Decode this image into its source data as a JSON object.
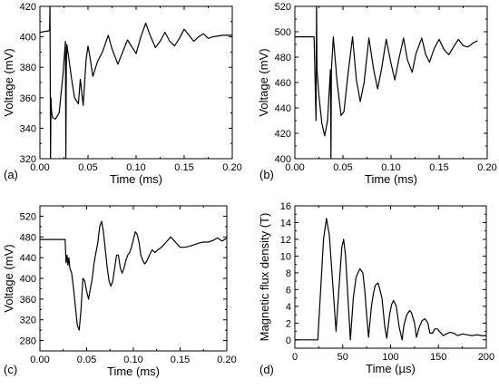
{
  "chart_data": [
    {
      "panel_label": "(a)",
      "type": "line",
      "xlabel": "Time (ms)",
      "ylabel": "Voltage (mV)",
      "xlim": [
        0,
        0.2
      ],
      "ylim": [
        320,
        420
      ],
      "xticks": [
        "0.00",
        "0.05",
        "0.10",
        "0.15",
        "0.20"
      ],
      "yticks": [
        "320",
        "340",
        "360",
        "380",
        "400",
        "420"
      ],
      "series": [
        {
          "color": "#000000",
          "x": [
            0,
            0.01,
            0.0105,
            0.011,
            0.0115,
            0.012,
            0.013,
            0.016,
            0.02,
            0.024,
            0.0265,
            0.027,
            0.0275,
            0.028,
            0.03,
            0.033,
            0.036,
            0.04,
            0.042,
            0.045,
            0.048,
            0.05,
            0.052,
            0.055,
            0.06,
            0.065,
            0.071,
            0.075,
            0.081,
            0.086,
            0.091,
            0.096,
            0.1,
            0.105,
            0.11,
            0.114,
            0.12,
            0.125,
            0.13,
            0.135,
            0.14,
            0.145,
            0.15,
            0.155,
            0.16,
            0.165,
            0.17,
            0.175,
            0.18,
            0.19,
            0.2
          ],
          "y": [
            403,
            404,
            420,
            320,
            360,
            352,
            347,
            346,
            350,
            375,
            397,
            320,
            380,
            395,
            386,
            372,
            360,
            356,
            372,
            355,
            385,
            394,
            387,
            374,
            384,
            390,
            401,
            392,
            382,
            390,
            398,
            393,
            389,
            400,
            409,
            402,
            393,
            397,
            403,
            397,
            394,
            399,
            405,
            401,
            397,
            400,
            402,
            399,
            400,
            401,
            401
          ]
        }
      ]
    },
    {
      "panel_label": "(b)",
      "type": "line",
      "xlabel": "Time (ms)",
      "ylabel": "Voltage (mV)",
      "xlim": [
        0,
        0.2
      ],
      "ylim": [
        400,
        520
      ],
      "xticks": [
        "0.00",
        "0.05",
        "0.10",
        "0.15",
        "0.20"
      ],
      "yticks": [
        "400",
        "420",
        "440",
        "460",
        "480",
        "500",
        "520"
      ],
      "series": [
        {
          "color": "#000000",
          "x": [
            0,
            0.02,
            0.022,
            0.0225,
            0.023,
            0.025,
            0.028,
            0.031,
            0.034,
            0.037,
            0.0375,
            0.038,
            0.04,
            0.044,
            0.048,
            0.051,
            0.055,
            0.06,
            0.064,
            0.068,
            0.072,
            0.077,
            0.082,
            0.086,
            0.09,
            0.095,
            0.1,
            0.104,
            0.108,
            0.113,
            0.117,
            0.122,
            0.126,
            0.132,
            0.136,
            0.14,
            0.145,
            0.15,
            0.155,
            0.16,
            0.165,
            0.17,
            0.175,
            0.18,
            0.185,
            0.19
          ],
          "y": [
            496,
            496,
            430,
            520,
            470,
            450,
            428,
            418,
            430,
            470,
            400,
            470,
            496,
            460,
            434,
            437,
            465,
            496,
            462,
            445,
            460,
            495,
            470,
            455,
            470,
            494,
            475,
            462,
            478,
            495,
            478,
            468,
            483,
            495,
            482,
            476,
            487,
            494,
            486,
            482,
            488,
            494,
            489,
            488,
            491,
            493
          ]
        }
      ]
    },
    {
      "panel_label": "(c)",
      "type": "line",
      "xlabel": "Time (ms)",
      "ylabel": "Voltage (mV)",
      "xlim": [
        0,
        0.2
      ],
      "ylim": [
        260,
        540
      ],
      "xticks": [
        "0.00",
        "0.05",
        "0.10",
        "0.15",
        "0.20"
      ],
      "yticks": [
        "280",
        "320",
        "360",
        "400",
        "440",
        "480",
        "520"
      ],
      "series": [
        {
          "color": "#000000",
          "x": [
            0,
            0.027,
            0.028,
            0.029,
            0.03,
            0.031,
            0.032,
            0.034,
            0.036,
            0.038,
            0.04,
            0.042,
            0.044,
            0.046,
            0.048,
            0.05,
            0.052,
            0.054,
            0.056,
            0.058,
            0.06,
            0.062,
            0.064,
            0.066,
            0.068,
            0.07,
            0.072,
            0.074,
            0.076,
            0.078,
            0.08,
            0.082,
            0.084,
            0.086,
            0.088,
            0.09,
            0.092,
            0.094,
            0.096,
            0.098,
            0.1,
            0.102,
            0.104,
            0.106,
            0.108,
            0.11,
            0.112,
            0.114,
            0.116,
            0.118,
            0.12,
            0.123,
            0.126,
            0.13,
            0.135,
            0.14,
            0.145,
            0.15,
            0.155,
            0.16,
            0.165,
            0.17,
            0.175,
            0.18,
            0.185,
            0.19,
            0.195,
            0.2
          ],
          "y": [
            475,
            475,
            430,
            445,
            425,
            440,
            420,
            410,
            380,
            345,
            310,
            300,
            340,
            400,
            395,
            375,
            360,
            380,
            400,
            430,
            450,
            470,
            500,
            510,
            490,
            455,
            420,
            395,
            385,
            395,
            420,
            445,
            445,
            420,
            410,
            420,
            435,
            445,
            450,
            460,
            475,
            490,
            485,
            470,
            445,
            435,
            428,
            432,
            440,
            448,
            455,
            450,
            455,
            460,
            470,
            480,
            470,
            460,
            460,
            462,
            465,
            468,
            470,
            470,
            473,
            478,
            472,
            478
          ]
        }
      ]
    },
    {
      "panel_label": "(d)",
      "type": "line",
      "xlabel": "Time (µs)",
      "ylabel": "Magnetic flux density (T)",
      "xlim": [
        0,
        200
      ],
      "ylim": [
        -1,
        16
      ],
      "xticks": [
        "0",
        "50",
        "100",
        "150",
        "200"
      ],
      "yticks": [
        "0",
        "2",
        "4",
        "6",
        "8",
        "10",
        "12",
        "14",
        "16"
      ],
      "series": [
        {
          "color": "#000000",
          "x": [
            0,
            20,
            24,
            26,
            30,
            33,
            36,
            40,
            43,
            46,
            49,
            51,
            53,
            55,
            58,
            61,
            64,
            68,
            71,
            73,
            75,
            77,
            80,
            82,
            84,
            87,
            91,
            94,
            96,
            99,
            101,
            103,
            106,
            109,
            112,
            114,
            117,
            120,
            122,
            125,
            127,
            130,
            133,
            136,
            139,
            141,
            144,
            146,
            149,
            151,
            155,
            158,
            162,
            166,
            170,
            175,
            180,
            185,
            190,
            195,
            200
          ],
          "y": [
            0,
            0,
            0,
            4,
            12,
            14.5,
            12.5,
            6,
            1,
            6,
            11,
            12,
            10,
            6,
            0,
            5,
            7.5,
            8.5,
            8,
            6,
            3,
            0.3,
            4,
            5.5,
            6.5,
            6.8,
            5,
            1.5,
            0.2,
            3,
            4.2,
            4.7,
            4,
            1.5,
            0,
            1.8,
            3,
            3.5,
            3.2,
            2,
            0.3,
            1.5,
            2.3,
            2.5,
            2,
            0.8,
            0.8,
            1.3,
            1.3,
            1,
            0.5,
            0.7,
            0.9,
            0.8,
            0.5,
            0.7,
            0.6,
            0.5,
            0.6,
            0.5,
            0.5
          ]
        }
      ]
    }
  ]
}
